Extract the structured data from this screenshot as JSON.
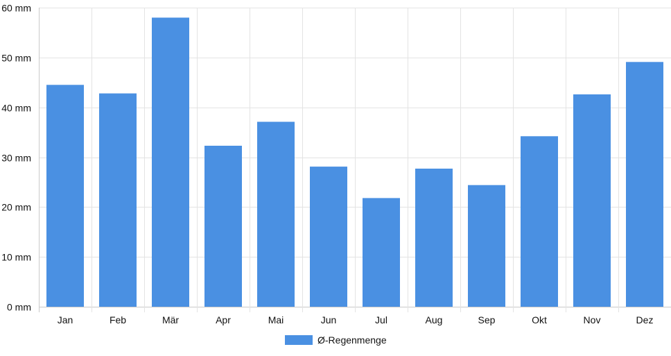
{
  "chart_data": {
    "type": "bar",
    "categories": [
      "Jan",
      "Feb",
      "Mär",
      "Apr",
      "Mai",
      "Jun",
      "Jul",
      "Aug",
      "Sep",
      "Okt",
      "Nov",
      "Dez"
    ],
    "series": [
      {
        "name": "Ø-Regenmenge",
        "values": [
          44.5,
          42.8,
          58.0,
          32.3,
          37.1,
          28.1,
          21.8,
          27.7,
          24.4,
          34.2,
          42.6,
          49.1
        ],
        "color": "#4a90e2"
      }
    ],
    "ylim": [
      0,
      60
    ],
    "ytick_labels": [
      "0 mm",
      "10 mm",
      "20 mm",
      "30 mm",
      "40 mm",
      "50 mm",
      "60 mm"
    ],
    "grid": true,
    "legend_position": "bottom",
    "colors": {
      "gridline": "#e3e3e3",
      "axis": "#c9c9c9",
      "text": "#111111"
    }
  }
}
